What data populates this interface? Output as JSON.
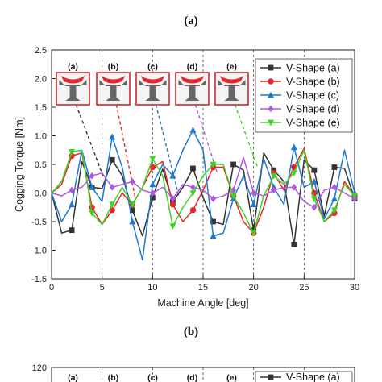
{
  "panel_labels": {
    "top": "(a)",
    "middle": "(b)"
  },
  "inset_labels": [
    "(a)",
    "(b)",
    "(c)",
    "(d)",
    "(e)"
  ],
  "colors": {
    "a": "#333333",
    "b": "#e8252c",
    "c": "#1f78d1",
    "d": "#b057e0",
    "e": "#3cd424"
  },
  "chart_data": [
    {
      "type": "line",
      "xlabel": "Machine Angle [deg]",
      "ylabel": "Cogging Torque [Nm]",
      "xlim": [
        0,
        30
      ],
      "ylim": [
        -1.5,
        2.5
      ],
      "xticks": [
        0,
        5,
        10,
        15,
        20,
        25,
        30
      ],
      "yticks": [
        -1.5,
        -1.0,
        -0.5,
        0.0,
        0.5,
        1.0,
        1.5,
        2.0,
        2.5
      ],
      "grid": "dashed vertical lines at x ticks",
      "legend_position": "top-right",
      "x": [
        0,
        1,
        2,
        3,
        4,
        5,
        6,
        7,
        8,
        9,
        10,
        11,
        12,
        13,
        14,
        15,
        16,
        17,
        18,
        19,
        20,
        21,
        22,
        23,
        24,
        25,
        26,
        27,
        28,
        29,
        30
      ],
      "series": [
        {
          "name": "V-Shape (a)",
          "marker": "square",
          "values": [
            0.0,
            -0.7,
            -0.65,
            0.55,
            0.1,
            0.08,
            0.58,
            0.3,
            -0.3,
            -0.75,
            -0.08,
            0.42,
            -0.15,
            0.1,
            0.43,
            -0.08,
            -0.5,
            -0.55,
            0.5,
            0.4,
            -0.65,
            0.7,
            0.4,
            0.2,
            -0.9,
            0.58,
            0.4,
            -0.4,
            0.45,
            0.43,
            -0.1
          ]
        },
        {
          "name": "V-Shape (b)",
          "marker": "circle",
          "values": [
            0.0,
            0.15,
            0.65,
            0.7,
            -0.25,
            -0.55,
            -0.3,
            0.0,
            -0.2,
            0.1,
            0.45,
            0.55,
            -0.2,
            -0.5,
            -0.3,
            0.05,
            0.45,
            0.45,
            -0.05,
            -0.5,
            -0.7,
            -0.25,
            0.35,
            0.05,
            0.45,
            0.78,
            0.0,
            -0.5,
            -0.35,
            0.2,
            -0.05
          ]
        },
        {
          "name": "V-Shape (c)",
          "marker": "triangle-up",
          "values": [
            0.0,
            -0.5,
            -0.2,
            0.75,
            0.1,
            -0.15,
            0.98,
            0.45,
            -0.5,
            -1.17,
            0.15,
            0.5,
            0.3,
            0.75,
            1.1,
            0.75,
            -0.75,
            -0.7,
            -0.1,
            0.3,
            -0.2,
            0.6,
            0.1,
            -0.2,
            0.8,
            0.1,
            0.2,
            -0.45,
            -0.1,
            0.75,
            0.0
          ]
        },
        {
          "name": "V-Shape (d)",
          "marker": "diamond",
          "values": [
            0.0,
            -0.05,
            0.05,
            0.1,
            0.3,
            0.35,
            0.1,
            0.15,
            0.2,
            0.05,
            0.0,
            0.1,
            -0.1,
            0.15,
            0.1,
            0.05,
            -0.1,
            -0.05,
            0.05,
            0.62,
            0.0,
            -0.05,
            0.05,
            0.1,
            0.1,
            -0.15,
            -0.25,
            0.05,
            0.1,
            0.0,
            -0.1
          ]
        },
        {
          "name": "V-Shape (e)",
          "marker": "triangle-down",
          "values": [
            0.0,
            0.2,
            0.72,
            0.75,
            -0.35,
            -0.55,
            -0.2,
            0.1,
            -0.2,
            0.1,
            0.6,
            0.3,
            -0.58,
            -0.25,
            0.0,
            0.3,
            0.5,
            0.5,
            -0.05,
            -0.35,
            -0.7,
            -0.05,
            0.3,
            0.15,
            0.35,
            0.75,
            -0.1,
            -0.5,
            -0.3,
            0.15,
            -0.05
          ]
        }
      ]
    },
    {
      "type": "line",
      "yticks_visible": [
        120
      ],
      "legend_visible_entries": [
        "V-Shape (a)"
      ]
    }
  ]
}
